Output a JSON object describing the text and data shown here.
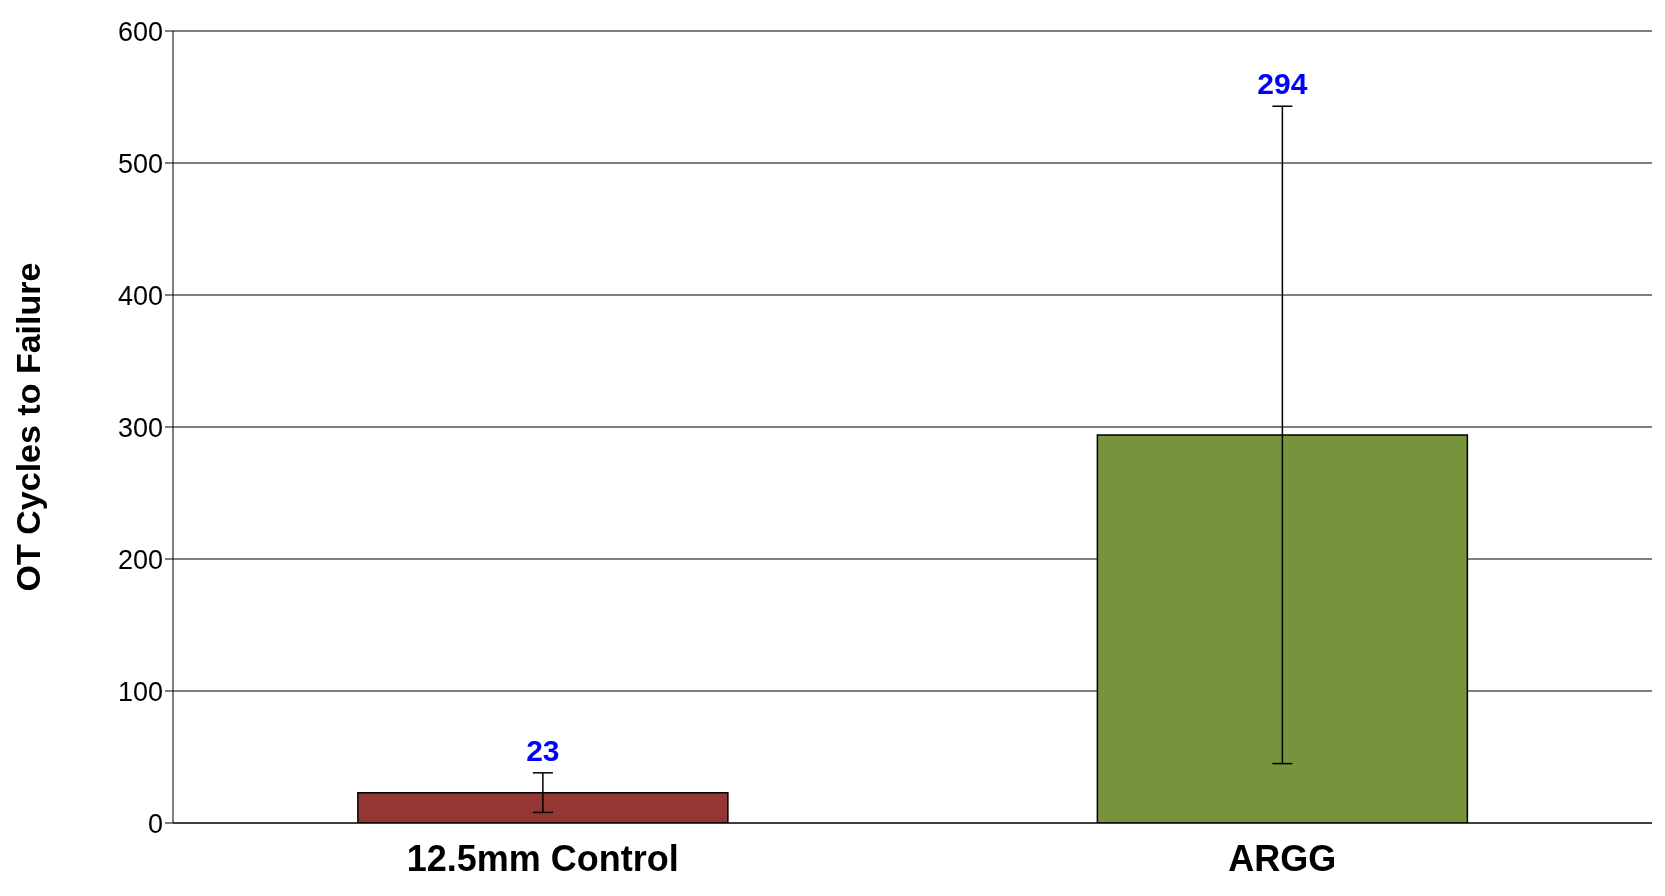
{
  "chart_data": {
    "type": "bar",
    "ylabel": "OT Cycles to Failure",
    "categories": [
      "12.5mm Control",
      "ARGG"
    ],
    "values": [
      23,
      294
    ],
    "colors": [
      "#943634",
      "#77933c"
    ],
    "errors": [
      15,
      249
    ],
    "annotations": [
      {
        "text": "23",
        "x": "12.5mm Control",
        "y": 38
      },
      {
        "text": "294",
        "x": "ARGG",
        "y": 543
      }
    ],
    "ylim": [
      0,
      600
    ],
    "yticks": [
      0,
      100,
      200,
      300,
      400,
      500,
      600
    ],
    "grid": "y"
  }
}
